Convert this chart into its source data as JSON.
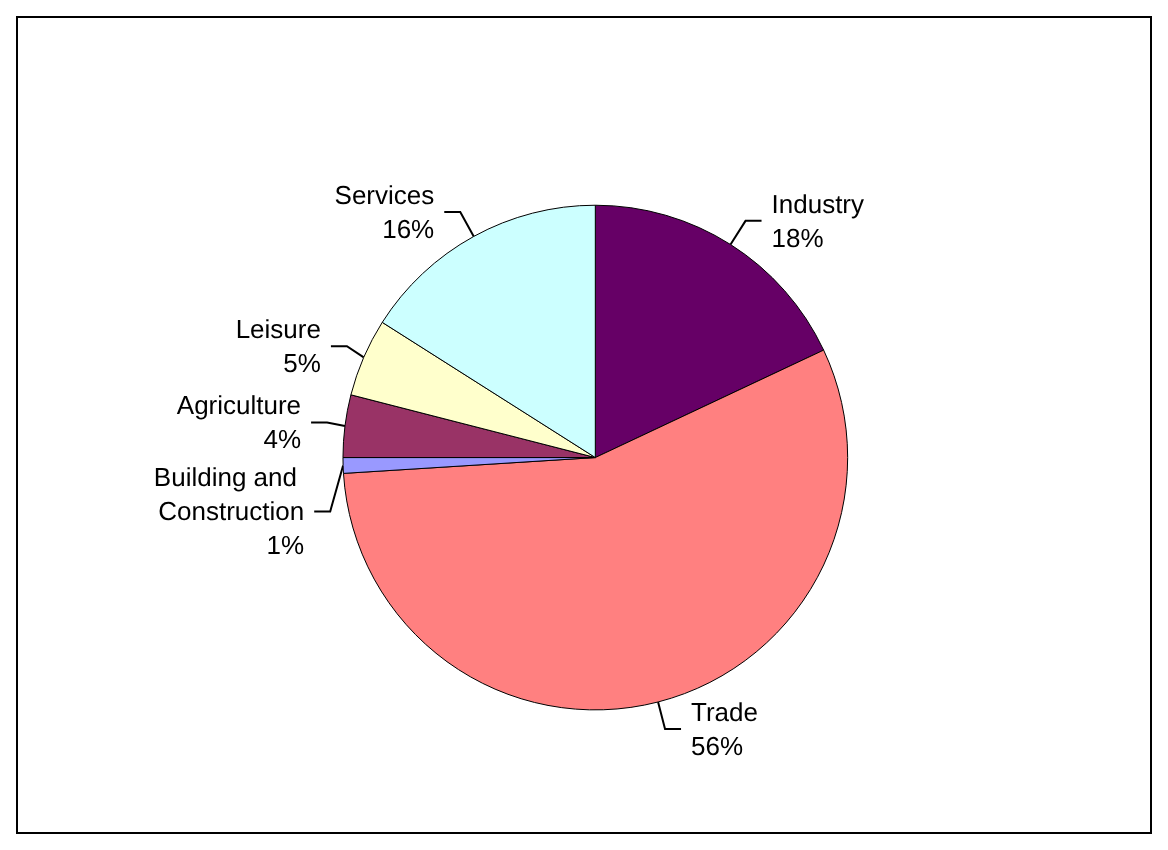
{
  "chart_data": {
    "type": "pie",
    "categories": [
      "Industry",
      "Trade",
      "Building and Construction",
      "Agriculture",
      "Leisure",
      "Services"
    ],
    "values": [
      18,
      56,
      1,
      4,
      5,
      16
    ],
    "value_labels": [
      "18%",
      "56%",
      "1%",
      "4%",
      "5%",
      "16%"
    ],
    "colors": [
      "#660066",
      "#ff8080",
      "#9999ff",
      "#993366",
      "#ffffcc",
      "#ccffff"
    ],
    "legend": false
  }
}
